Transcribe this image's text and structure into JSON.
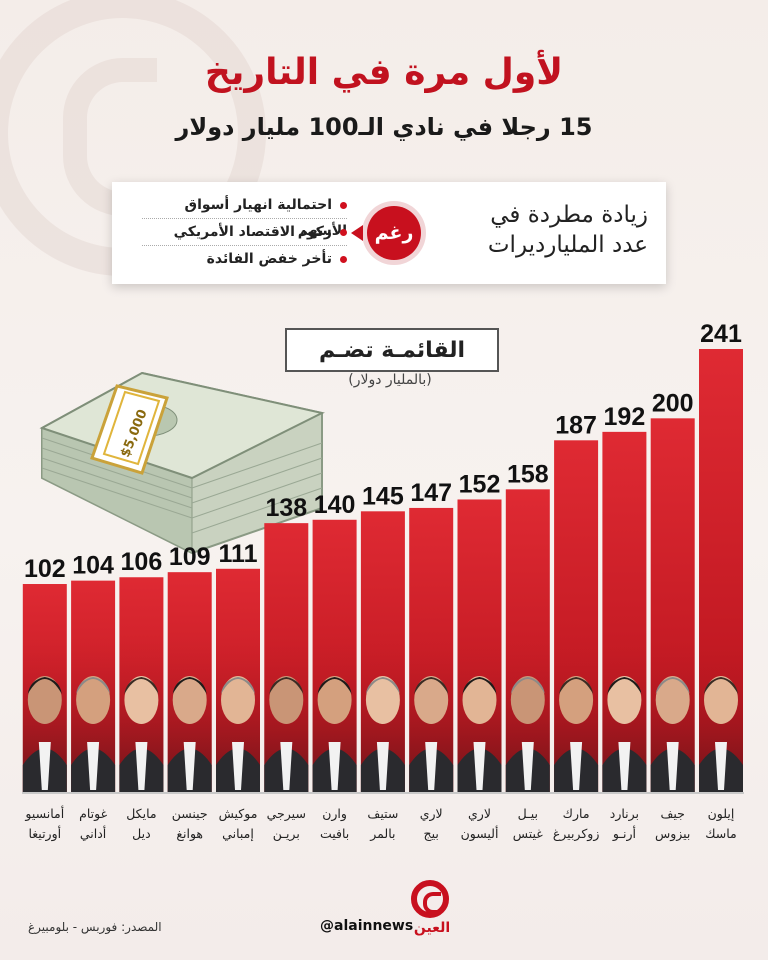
{
  "header": {
    "title": "لأول مرة في التاريخ",
    "subtitle": "15 رجلا في نادي الـ100 مليار دولار"
  },
  "info": {
    "main_text": "زيادة مطردة في عدد المليارديرات",
    "despite_label": "رغم",
    "reasons": [
      "احتمالية انهيار أسواق الأسهم",
      "ركود الاقتصاد الأمريكي",
      "تأخر خفض الفائدة"
    ]
  },
  "list_label": "القائمـة تضـم",
  "unit_note": "(بالمليار دولار)",
  "cash_label": "$5,000",
  "colors": {
    "accent": "#c8101e",
    "bar_top": "#d9202a",
    "bar_bottom": "#b8101a"
  },
  "chart_data": {
    "type": "bar",
    "categories": [
      "إيلون ماسك",
      "جيف بيزوس",
      "برنارد أرنـو",
      "مارك زوكربيرغ",
      "بيـل غيتس",
      "لاري أليسون",
      "لاري بيج",
      "ستيف بالمر",
      "وارن بافيت",
      "سيرجي بريـن",
      "موكيش إمباني",
      "جينسن هوانغ",
      "مايكل ديل",
      "غوتام أداني",
      "أمانسيو أورتيغا"
    ],
    "values": [
      241,
      200,
      192,
      187,
      158,
      152,
      147,
      145,
      140,
      138,
      111,
      109,
      106,
      104,
      102
    ],
    "title": "",
    "xlabel": "",
    "ylabel": "",
    "ylim": [
      0,
      241
    ]
  },
  "footer": {
    "source": "المصدر: فوربس - بلومبيرغ",
    "handle": "@alainnews",
    "brand": "العين"
  }
}
